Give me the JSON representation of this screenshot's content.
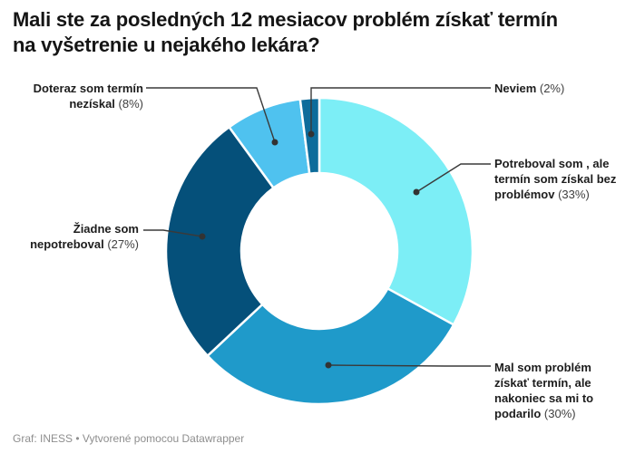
{
  "header": {
    "title_lines": [
      "Mali ste za posledných 12 mesiacov problém získať termín",
      "na vyšetrenie u nejakého lekára?"
    ]
  },
  "chart_data": {
    "type": "pie",
    "subtype": "donut",
    "title": "Mali ste za posledných 12 mesiacov problém získať termín na vyšetrenie u nejakého lekára?",
    "unit": "%",
    "direction": "clockwise",
    "start_angle_deg": 0,
    "donut_hole_ratio": 0.51,
    "separator_color": "#ffffff",
    "connector_color": "#3a3a3a",
    "slices": [
      {
        "label": "Potreboval som , ale termín som získal bez problémov",
        "value": 33,
        "pct_text": "(33%)",
        "color": "#7CEEF6"
      },
      {
        "label": "Mal som problém získať termín, ale nakoniec sa mi to podarilo",
        "value": 30,
        "pct_text": "(30%)",
        "color": "#1F9ACA"
      },
      {
        "label": "Žiadne som nepotreboval",
        "value": 27,
        "pct_text": "(27%)",
        "color": "#05507A"
      },
      {
        "label": "Doteraz som termín nezískal",
        "value": 8,
        "pct_text": "(8%)",
        "color": "#4FC2EF"
      },
      {
        "label": "Neviem",
        "value": 2,
        "pct_text": "(2%)",
        "color": "#0D6C9B"
      }
    ]
  },
  "footer": {
    "credit": "Graf: INESS • Vytvorené pomocou Datawrapper"
  }
}
